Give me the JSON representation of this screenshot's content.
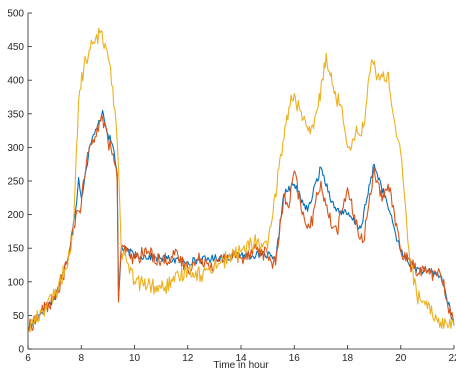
{
  "chart_data": {
    "type": "line",
    "title": "",
    "xlabel": "Time in hour",
    "ylabel": "",
    "xlim": [
      6,
      22
    ],
    "ylim": [
      0,
      500
    ],
    "xticks": [
      6,
      8,
      10,
      12,
      14,
      16,
      18,
      20,
      22
    ],
    "yticks": [
      0,
      50,
      100,
      150,
      200,
      250,
      300,
      350,
      400,
      450,
      500
    ],
    "grid": false,
    "legend": "none",
    "series": [
      {
        "color": "#0072BD",
        "x": [
          6.0,
          6.5,
          7.0,
          7.5,
          7.8,
          7.9,
          8.0,
          8.1,
          8.2,
          8.3,
          8.5,
          8.7,
          8.8,
          9.0,
          9.2,
          9.35,
          9.4,
          9.5,
          10.0,
          11.0,
          12.0,
          13.0,
          14.0,
          15.0,
          15.3,
          15.6,
          16.0,
          16.5,
          17.0,
          17.5,
          18.0,
          18.5,
          19.0,
          19.5,
          20.0,
          20.5,
          21.0,
          21.5,
          22.0
        ],
        "y": [
          30,
          55,
          75,
          135,
          210,
          255,
          225,
          245,
          270,
          300,
          320,
          340,
          355,
          320,
          300,
          260,
          75,
          150,
          140,
          135,
          130,
          135,
          140,
          140,
          130,
          230,
          245,
          205,
          270,
          210,
          200,
          180,
          275,
          215,
          145,
          120,
          115,
          110,
          35
        ]
      },
      {
        "color": "#D95319",
        "x": [
          6.0,
          6.5,
          7.0,
          7.5,
          7.8,
          8.0,
          8.2,
          8.4,
          8.6,
          8.8,
          9.0,
          9.2,
          9.35,
          9.4,
          9.5,
          10.0,
          10.5,
          11.0,
          11.5,
          12.0,
          12.5,
          13.0,
          13.5,
          14.0,
          14.5,
          15.0,
          15.3,
          15.6,
          15.8,
          16.0,
          16.3,
          16.6,
          17.0,
          17.3,
          17.6,
          18.0,
          18.3,
          18.6,
          19.0,
          19.3,
          19.6,
          20.0,
          20.5,
          21.0,
          21.5,
          22.0
        ],
        "y": [
          30,
          55,
          75,
          130,
          200,
          215,
          280,
          305,
          330,
          345,
          310,
          290,
          250,
          70,
          150,
          135,
          145,
          130,
          140,
          120,
          135,
          125,
          140,
          135,
          150,
          140,
          125,
          225,
          210,
          265,
          200,
          180,
          250,
          195,
          175,
          240,
          185,
          160,
          270,
          220,
          240,
          145,
          120,
          115,
          110,
          35
        ]
      },
      {
        "color": "#EDB120",
        "x": [
          6.0,
          6.5,
          7.0,
          7.4,
          7.7,
          7.9,
          8.1,
          8.3,
          8.5,
          8.7,
          8.9,
          9.1,
          9.3,
          9.4,
          9.5,
          9.7,
          10.0,
          10.5,
          11.0,
          11.5,
          12.0,
          12.5,
          13.0,
          13.5,
          14.0,
          14.5,
          15.0,
          15.2,
          15.5,
          15.8,
          16.0,
          16.3,
          16.6,
          16.9,
          17.2,
          17.5,
          17.8,
          18.0,
          18.3,
          18.6,
          18.9,
          19.2,
          19.5,
          19.8,
          20.0,
          20.3,
          20.6,
          21.0,
          21.5,
          22.0
        ],
        "y": [
          30,
          55,
          80,
          120,
          170,
          370,
          420,
          445,
          455,
          470,
          455,
          420,
          340,
          270,
          150,
          130,
          100,
          95,
          90,
          100,
          120,
          110,
          125,
          135,
          145,
          160,
          150,
          200,
          290,
          360,
          380,
          340,
          320,
          360,
          440,
          380,
          360,
          300,
          320,
          330,
          430,
          400,
          410,
          330,
          290,
          150,
          80,
          60,
          40,
          35
        ]
      }
    ]
  }
}
